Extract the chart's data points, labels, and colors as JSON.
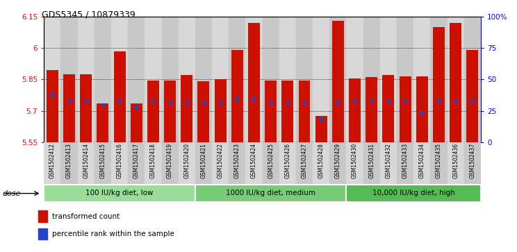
{
  "title": "GDS5345 / 10879339",
  "samples": [
    "GSM1502412",
    "GSM1502413",
    "GSM1502414",
    "GSM1502415",
    "GSM1502416",
    "GSM1502417",
    "GSM1502418",
    "GSM1502419",
    "GSM1502420",
    "GSM1502421",
    "GSM1502422",
    "GSM1502423",
    "GSM1502424",
    "GSM1502425",
    "GSM1502426",
    "GSM1502427",
    "GSM1502428",
    "GSM1502429",
    "GSM1502430",
    "GSM1502431",
    "GSM1502432",
    "GSM1502433",
    "GSM1502434",
    "GSM1502435",
    "GSM1502436",
    "GSM1502437"
  ],
  "bar_tops": [
    5.895,
    5.875,
    5.875,
    5.735,
    5.985,
    5.735,
    5.845,
    5.845,
    5.87,
    5.84,
    5.85,
    5.99,
    6.12,
    5.845,
    5.845,
    5.845,
    5.675,
    6.13,
    5.855,
    5.86,
    5.87,
    5.865,
    5.865,
    6.1,
    6.12,
    5.99
  ],
  "percentile_ranks": [
    38,
    33,
    33,
    30,
    33,
    28,
    33,
    32,
    32,
    32,
    32,
    35,
    35,
    32,
    32,
    32,
    18,
    32,
    33,
    33,
    33,
    33,
    24,
    33,
    33,
    33
  ],
  "bar_color": "#CC1100",
  "blue_color": "#2244CC",
  "ymin": 5.55,
  "ymax": 6.15,
  "yticks": [
    5.55,
    5.7,
    5.85,
    6.0,
    6.15
  ],
  "ytick_labels": [
    "5.55",
    "5.7",
    "5.85",
    "6",
    "6.15"
  ],
  "right_yticks": [
    0,
    25,
    50,
    75,
    100
  ],
  "right_ytick_labels": [
    "0",
    "25",
    "50",
    "75",
    "100%"
  ],
  "group_starts": [
    0,
    9,
    18
  ],
  "group_ends": [
    8,
    17,
    25
  ],
  "group_labels": [
    "100 IU/kg diet, low",
    "1000 IU/kg diet, medium",
    "10,000 IU/kg diet, high"
  ],
  "group_colors": [
    "#99DD99",
    "#77CC77",
    "#55BB55"
  ],
  "legend_label_bar": "transformed count",
  "legend_label_pct": "percentile rank within the sample",
  "dose_label": "dose"
}
